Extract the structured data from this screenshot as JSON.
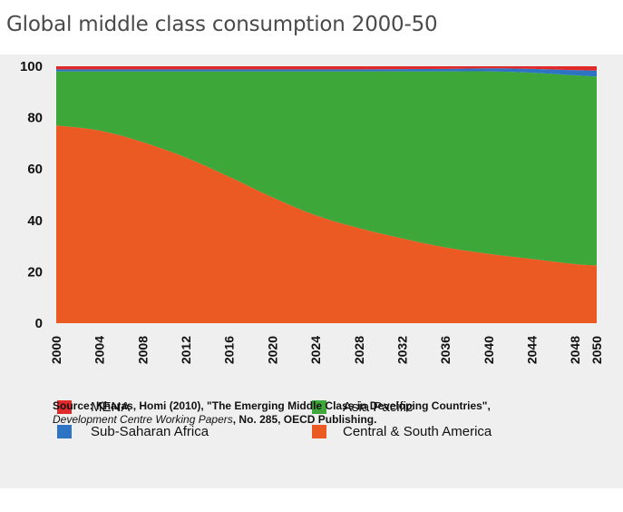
{
  "title": "Global middle class consumption 2000-50",
  "colors": {
    "mena": "#e02a2a",
    "ssa": "#2d74c4",
    "asia": "#3da73a",
    "csa": "#ec5a24",
    "panel": "#efefef"
  },
  "chart_data": {
    "type": "area",
    "stacked": true,
    "x": [
      2000,
      2004,
      2008,
      2012,
      2016,
      2020,
      2024,
      2028,
      2032,
      2036,
      2040,
      2044,
      2048,
      2050
    ],
    "x_tick_labels": [
      "2000",
      "2004",
      "2008",
      "2012",
      "2016",
      "2020",
      "2024",
      "2028",
      "2032",
      "2036",
      "2040",
      "2044",
      "2048",
      "2050"
    ],
    "y_ticks": [
      0,
      20,
      40,
      60,
      80,
      100
    ],
    "ylim": [
      0,
      100
    ],
    "series": [
      {
        "name": "Central & South America",
        "color_key": "csa",
        "values": [
          77,
          75,
          70.5,
          64.5,
          57,
          49,
          42,
          37,
          33,
          29.5,
          27,
          25,
          23,
          22.5
        ]
      },
      {
        "name": "Asia Pacific",
        "color_key": "asia",
        "values": [
          21,
          23,
          27.5,
          33.5,
          41,
          49,
          56,
          61,
          65,
          68.5,
          71,
          72.5,
          73.5,
          73.5
        ]
      },
      {
        "name": "Sub-Saharan Africa",
        "color_key": "ssa",
        "values": [
          0.8,
          0.8,
          0.8,
          0.8,
          0.8,
          0.8,
          0.8,
          0.8,
          0.9,
          1.0,
          1.2,
          1.5,
          2.0,
          2.3
        ]
      },
      {
        "name": "MENA",
        "color_key": "mena",
        "values": [
          1.2,
          1.2,
          1.2,
          1.2,
          1.2,
          1.2,
          1.2,
          1.2,
          1.1,
          1.0,
          0.8,
          1.0,
          1.5,
          1.7
        ]
      }
    ],
    "legend": [
      {
        "label": "MENA",
        "color_key": "mena"
      },
      {
        "label": "Asia Pacific",
        "color_key": "asia"
      },
      {
        "label": "Sub-Saharan Africa",
        "color_key": "ssa"
      },
      {
        "label": "Central & South America",
        "color_key": "csa"
      }
    ],
    "legend_position": "bottom"
  },
  "source": {
    "line1": "Source: Kharas, Homi (2010), \"The Emerging Middle Class in Developing Countries\",",
    "line2_italic": "Development Centre Working Papers",
    "line2_rest": ", No. 285, OECD Publishing."
  }
}
